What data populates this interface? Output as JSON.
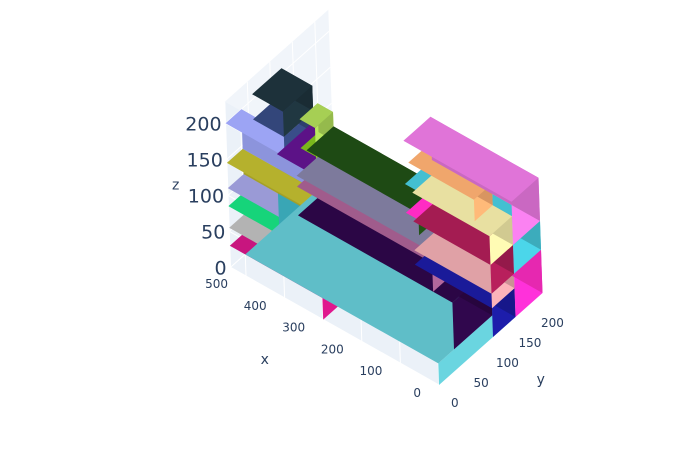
{
  "chart_data": {
    "type": "3d-box-stack",
    "axes": {
      "x": {
        "title": "x",
        "range": [
          0,
          540
        ],
        "ticks": [
          0,
          100,
          200,
          300,
          400,
          500
        ]
      },
      "y": {
        "title": "y",
        "range": [
          0,
          230
        ],
        "ticks": [
          0,
          50,
          100,
          150,
          200
        ]
      },
      "z": {
        "title": "z",
        "range": [
          0,
          230
        ],
        "ticks": [
          0,
          50,
          100,
          150,
          200
        ]
      }
    },
    "grid": true,
    "boxes": [
      {
        "x": [
          300,
          540
        ],
        "y": [
          0,
          35
        ],
        "z": [
          0,
          30
        ],
        "color": "#c8157f"
      },
      {
        "x": [
          300,
          540
        ],
        "y": [
          0,
          35
        ],
        "z": [
          30,
          55
        ],
        "color": "#b3b3b3"
      },
      {
        "x": [
          300,
          540
        ],
        "y": [
          0,
          35
        ],
        "z": [
          55,
          85
        ],
        "color": "#16d47a"
      },
      {
        "x": [
          300,
          540
        ],
        "y": [
          0,
          35
        ],
        "z": [
          85,
          110
        ],
        "color": "#9a9ad6"
      },
      {
        "x": [
          300,
          540
        ],
        "y": [
          0,
          35
        ],
        "z": [
          110,
          145
        ],
        "color": "#b5b12d"
      },
      {
        "x": [
          300,
          540
        ],
        "y": [
          0,
          35
        ],
        "z": [
          145,
          200
        ],
        "color": "#9ca4f4"
      },
      {
        "x": [
          390,
          500
        ],
        "y": [
          35,
          75
        ],
        "z": [
          0,
          150
        ],
        "color": "#3fb8c9"
      },
      {
        "x": [
          330,
          450
        ],
        "y": [
          35,
          120
        ],
        "z": [
          75,
          165
        ],
        "color": "#5c1287"
      },
      {
        "x": [
          430,
          510
        ],
        "y": [
          35,
          100
        ],
        "z": [
          165,
          195
        ],
        "color": "#33467a"
      },
      {
        "x": [
          430,
          510
        ],
        "y": [
          35,
          100
        ],
        "z": [
          195,
          230
        ],
        "color": "#1d313a"
      },
      {
        "x": [
          390,
          430
        ],
        "y": [
          70,
          110
        ],
        "z": [
          120,
          160
        ],
        "color": "#7ab81c"
      },
      {
        "x": [
          390,
          430
        ],
        "y": [
          70,
          110
        ],
        "z": [
          160,
          200
        ],
        "color": "#a6cf54"
      },
      {
        "x": [
          0,
          280
        ],
        "y": [
          170,
          230
        ],
        "z": [
          0,
          60
        ],
        "color": "#ff2cc3"
      },
      {
        "x": [
          0,
          280
        ],
        "y": [
          170,
          230
        ],
        "z": [
          60,
          100
        ],
        "color": "#43bfd1"
      },
      {
        "x": [
          0,
          280
        ],
        "y": [
          170,
          230
        ],
        "z": [
          100,
          160
        ],
        "color": "#e074d8"
      },
      {
        "x": [
          0,
          200
        ],
        "y": [
          120,
          170
        ],
        "z": [
          0,
          40
        ],
        "color": "#1a1a99"
      },
      {
        "x": [
          0,
          200
        ],
        "y": [
          120,
          170
        ],
        "z": [
          40,
          60
        ],
        "color": "#e0a1a6"
      },
      {
        "x": [
          0,
          200
        ],
        "y": [
          120,
          170
        ],
        "z": [
          60,
          100
        ],
        "color": "#a41c52"
      },
      {
        "x": [
          0,
          200
        ],
        "y": [
          120,
          170
        ],
        "z": [
          100,
          140
        ],
        "color": "#e8e0a1"
      },
      {
        "x": [
          50,
          220
        ],
        "y": [
          130,
          170
        ],
        "z": [
          140,
          170
        ],
        "color": "#f0a66c"
      },
      {
        "x": [
          0,
          500
        ],
        "y": [
          0,
          160
        ],
        "z": [
          0,
          30
        ],
        "color": "#5fbec8"
      },
      {
        "x": [
          0,
          400
        ],
        "y": [
          35,
          120
        ],
        "z": [
          30,
          95
        ],
        "color": "#2b0645"
      },
      {
        "x": [
          50,
          400
        ],
        "y": [
          35,
          120
        ],
        "z": [
          95,
          135
        ],
        "color": "#a05c8c"
      },
      {
        "x": [
          50,
          400
        ],
        "y": [
          35,
          120
        ],
        "z": [
          135,
          150
        ],
        "color": "#7d7a9c"
      },
      {
        "x": [
          100,
          390
        ],
        "y": [
          50,
          110
        ],
        "z": [
          150,
          180
        ],
        "color": "#1e4a14"
      }
    ]
  }
}
